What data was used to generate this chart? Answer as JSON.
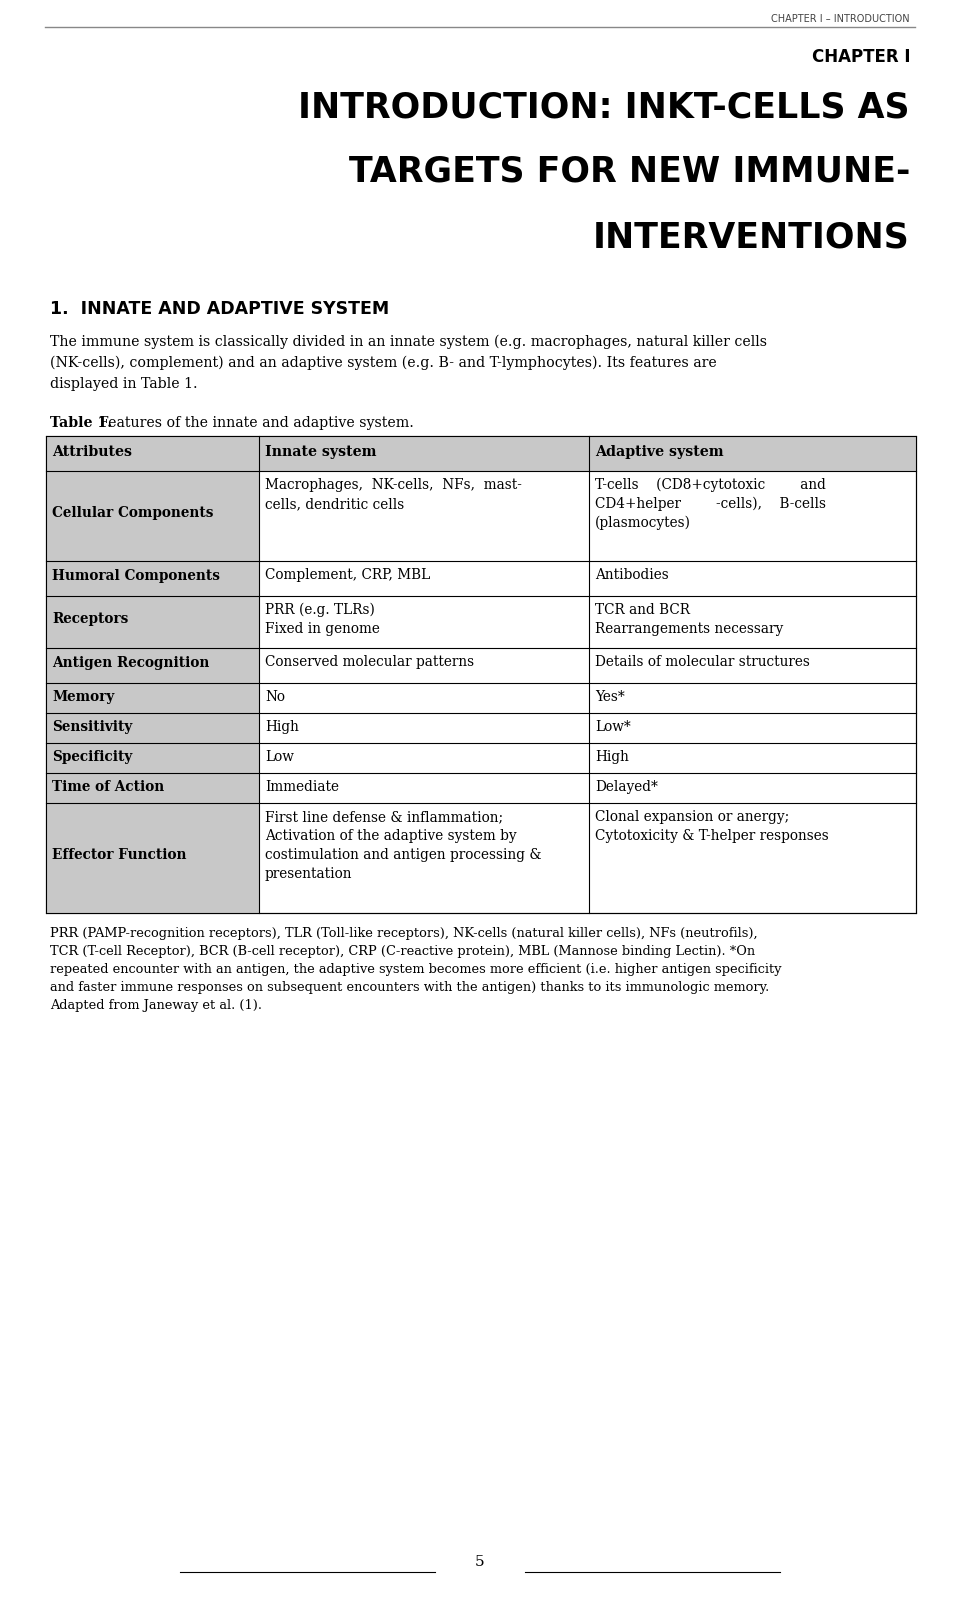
{
  "bg_color": "#ffffff",
  "text_color": "#000000",
  "header_top_text": "CHAPTER I – INTRODUCTION",
  "chapter_label": "CHAPTER I",
  "title_line1": "INTRODUCTION: INKT-CELLS AS",
  "title_line2": "TARGETS FOR NEW IMMUNE-",
  "title_line3": "INTERVENTIONS",
  "section_heading": "1.  INNATE AND ADAPTIVE SYSTEM",
  "body_para1_line1": "The immune system is classically divided in an innate system (e.g. macrophages, natural killer cells",
  "body_para1_line2": "(NK-cells), complement) and an adaptive system (e.g. B- and T-lymphocytes). Its features are",
  "body_para1_line3": "displayed in Table 1.",
  "table_caption_bold": "Table 1.",
  "table_caption_normal": "  Features of the innate and adaptive system.",
  "table_header": [
    "Attributes",
    "Innate system",
    "Adaptive system"
  ],
  "table_header_bg": "#c8c8c8",
  "table_attr_bg": "#c8c8c8",
  "table_rows": [
    {
      "attr": "Cellular Components",
      "innate_lines": [
        "Macrophages,  NK-cells,  NFs,  mast-",
        "cells, dendritic cells"
      ],
      "adaptive_lines": [
        "T-cells    (CD8+cytotoxic        and",
        "CD4+helper        -cells),    B-cells",
        "(plasmocytes)"
      ]
    },
    {
      "attr": "Humoral Components",
      "innate_lines": [
        "Complement, CRP, MBL"
      ],
      "adaptive_lines": [
        "Antibodies"
      ]
    },
    {
      "attr": "Receptors",
      "innate_lines": [
        "PRR (e.g. TLRs)",
        "Fixed in genome"
      ],
      "adaptive_lines": [
        "TCR and BCR",
        "Rearrangements necessary"
      ]
    },
    {
      "attr": "Antigen Recognition",
      "innate_lines": [
        "Conserved molecular patterns"
      ],
      "adaptive_lines": [
        "Details of molecular structures"
      ]
    },
    {
      "attr": "Memory",
      "innate_lines": [
        "No"
      ],
      "adaptive_lines": [
        "Yes*"
      ]
    },
    {
      "attr": "Sensitivity",
      "innate_lines": [
        "High"
      ],
      "adaptive_lines": [
        "Low*"
      ]
    },
    {
      "attr": "Specificity",
      "innate_lines": [
        "Low"
      ],
      "adaptive_lines": [
        "High"
      ]
    },
    {
      "attr": "Time of Action",
      "innate_lines": [
        "Immediate"
      ],
      "adaptive_lines": [
        "Delayed*"
      ]
    },
    {
      "attr": "Effector Function",
      "innate_lines": [
        "First line defense & inflammation;",
        "Activation of the adaptive system by",
        "costimulation and antigen processing &",
        "presentation"
      ],
      "adaptive_lines": [
        "Clonal expansion or anergy;",
        "Cytotoxicity & T-helper responses"
      ]
    }
  ],
  "footnote_lines": [
    "PRR (PAMP-recognition receptors), TLR (Toll-like receptors), NK-cells (natural killer cells), NFs (neutrofils),",
    "TCR (T-cell Receptor), BCR (B-cell receptor), CRP (C-reactive protein), MBL (Mannose binding Lectin). *On",
    "repeated encounter with an antigen, the adaptive system becomes more efficient (i.e. higher antigen specificity",
    "and faster immune responses on subsequent encounters with the antigen) thanks to its immunologic memory.",
    "Adapted from Janeway et al. (1)."
  ],
  "page_number": "5",
  "top_line_color": "#888888",
  "border_color": "#000000"
}
